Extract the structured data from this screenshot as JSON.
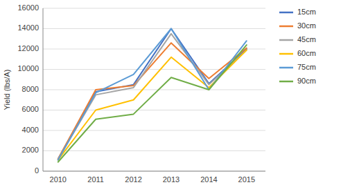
{
  "chart_data": {
    "type": "line",
    "x": [
      2010,
      2011,
      2012,
      2013,
      2014,
      2015
    ],
    "xlim": [
      2009.6,
      2015.5
    ],
    "xticks": [
      2010,
      2011,
      2012,
      2013,
      2014,
      2015
    ],
    "ylabel": "Yield (lbs/A)",
    "ylim": [
      0,
      16000
    ],
    "yticks": [
      0,
      2000,
      4000,
      6000,
      8000,
      10000,
      12000,
      14000,
      16000
    ],
    "grid": true,
    "legend": "right",
    "series": [
      {
        "name": "15cm",
        "color": "#4472C4",
        "values": [
          1200,
          7800,
          8500,
          14000,
          8600,
          12000
        ]
      },
      {
        "name": "30cm",
        "color": "#ED7D31",
        "values": [
          1200,
          8000,
          8400,
          12600,
          9100,
          12100
        ]
      },
      {
        "name": "45cm",
        "color": "#A5A5A5",
        "values": [
          1150,
          7500,
          8200,
          13500,
          8500,
          11900
        ]
      },
      {
        "name": "60cm",
        "color": "#FFC000",
        "values": [
          1100,
          6000,
          7000,
          11200,
          8200,
          11900
        ]
      },
      {
        "name": "75cm",
        "color": "#5B9BD5",
        "values": [
          1100,
          7700,
          9500,
          14000,
          8000,
          12800
        ]
      },
      {
        "name": "90cm",
        "color": "#70AD47",
        "values": [
          900,
          5100,
          5600,
          9200,
          8000,
          12400
        ]
      }
    ]
  }
}
